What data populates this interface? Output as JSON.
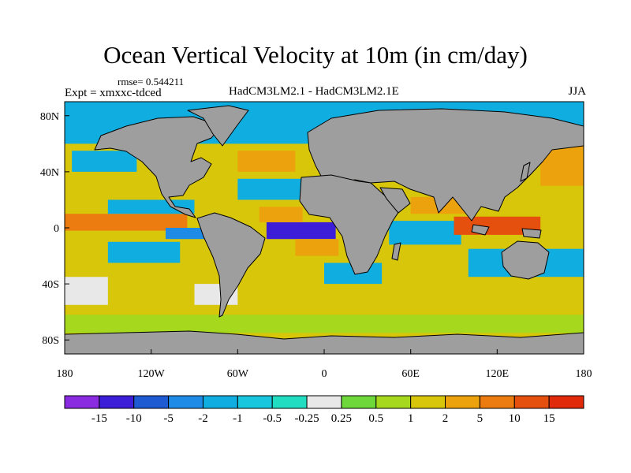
{
  "title": "Ocean Vertical Velocity at 10m (in cm/day)",
  "rmse_label": "rmse= 0.544211",
  "expt_label": "Expt = xmxxc-tdced",
  "model_label": "HadCM3LM2.1 - HadCM3LM2.1E",
  "season_label": "JJA",
  "chart_data": {
    "type": "heatmap",
    "title": "Ocean Vertical Velocity at 10m (in cm/day)",
    "x_range": [
      -180,
      180
    ],
    "y_range": [
      -90,
      90
    ],
    "x_ticks": [
      {
        "value": -180,
        "label": "180"
      },
      {
        "value": -120,
        "label": "120W"
      },
      {
        "value": -60,
        "label": "60W"
      },
      {
        "value": 0,
        "label": "0"
      },
      {
        "value": 60,
        "label": "60E"
      },
      {
        "value": 120,
        "label": "120E"
      },
      {
        "value": 180,
        "label": "180"
      }
    ],
    "y_ticks": [
      {
        "value": 80,
        "label": "80N"
      },
      {
        "value": 40,
        "label": "40N"
      },
      {
        "value": 0,
        "label": "0"
      },
      {
        "value": -40,
        "label": "40S"
      },
      {
        "value": -80,
        "label": "80S"
      }
    ],
    "colorbar": {
      "labels": [
        "-15",
        "-10",
        "-5",
        "-2",
        "-1",
        "-0.5",
        "-0.25",
        "0.25",
        "0.5",
        "1",
        "2",
        "5",
        "10",
        "15"
      ],
      "colors": [
        "#8a2be2",
        "#3c1ed8",
        "#1e5ad2",
        "#1e8ce6",
        "#10aee0",
        "#18c6de",
        "#20dcc0",
        "#e8e8e8",
        "#6ed83a",
        "#a6d81e",
        "#d8c60a",
        "#eca20c",
        "#ec7c10",
        "#e6500e",
        "#e02a0a"
      ]
    },
    "land_color": "#9e9e9e",
    "regions": [
      {
        "lon": [
          -180,
          180
        ],
        "lat": [
          -90,
          90
        ],
        "value": 1.2
      },
      {
        "lon": [
          -180,
          -95
        ],
        "lat": [
          -2,
          10
        ],
        "value": 8
      },
      {
        "lon": [
          -150,
          -90
        ],
        "lat": [
          10,
          20
        ],
        "value": -1.2
      },
      {
        "lon": [
          -40,
          8
        ],
        "lat": [
          -8,
          4
        ],
        "value": -12
      },
      {
        "lon": [
          -45,
          -15
        ],
        "lat": [
          4,
          15
        ],
        "value": 4
      },
      {
        "lon": [
          -60,
          -20
        ],
        "lat": [
          40,
          55
        ],
        "value": 3
      },
      {
        "lon": [
          -60,
          -10
        ],
        "lat": [
          20,
          35
        ],
        "value": -1.5
      },
      {
        "lon": [
          45,
          95
        ],
        "lat": [
          -12,
          5
        ],
        "value": -1.2
      },
      {
        "lon": [
          90,
          150
        ],
        "lat": [
          -5,
          8
        ],
        "value": 12
      },
      {
        "lon": [
          100,
          180
        ],
        "lat": [
          -35,
          -15
        ],
        "value": -1.5
      },
      {
        "lon": [
          150,
          180
        ],
        "lat": [
          30,
          60
        ],
        "value": 3
      },
      {
        "lon": [
          -180,
          -150
        ],
        "lat": [
          -55,
          -35
        ],
        "value": 0
      },
      {
        "lon": [
          -150,
          -100
        ],
        "lat": [
          -25,
          -10
        ],
        "value": -1.2
      },
      {
        "lon": [
          -90,
          -60
        ],
        "lat": [
          -55,
          -40
        ],
        "value": 0
      },
      {
        "lon": [
          -180,
          180
        ],
        "lat": [
          -75,
          -62
        ],
        "value": 0.6
      },
      {
        "lon": [
          -180,
          180
        ],
        "lat": [
          60,
          90
        ],
        "value": -1.2
      },
      {
        "lon": [
          0,
          40
        ],
        "lat": [
          -40,
          -25
        ],
        "value": -1.2
      },
      {
        "lon": [
          -110,
          -70
        ],
        "lat": [
          -8,
          0
        ],
        "value": -3
      },
      {
        "lon": [
          -20,
          10
        ],
        "lat": [
          -20,
          -8
        ],
        "value": 3
      },
      {
        "lon": [
          60,
          100
        ],
        "lat": [
          10,
          22
        ],
        "value": 4
      },
      {
        "lon": [
          -175,
          -130
        ],
        "lat": [
          40,
          55
        ],
        "value": -1.2
      }
    ]
  }
}
